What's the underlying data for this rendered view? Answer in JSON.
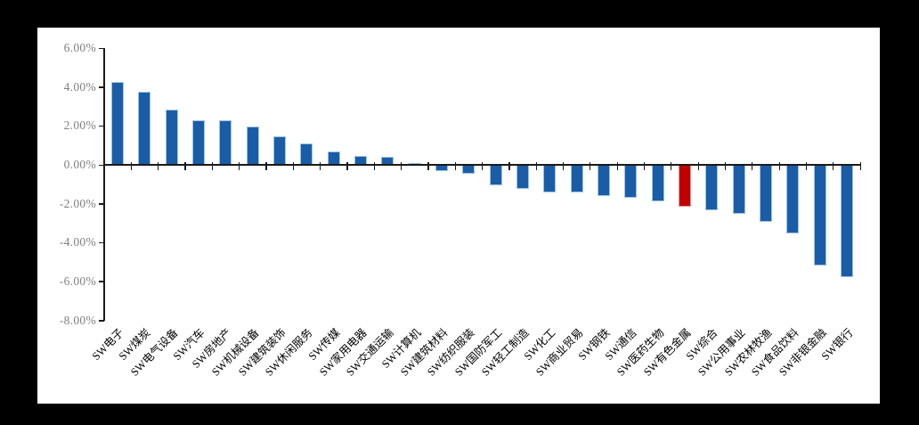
{
  "window": {
    "background_color": "#000000",
    "panel_color": "#ffffff"
  },
  "chart_data": {
    "type": "bar",
    "title": "",
    "legend": "none",
    "grid": "off",
    "categories": [
      "SW电子",
      "SW煤炭",
      "SW电气设备",
      "SW汽车",
      "SW房地产",
      "SW机械设备",
      "SW建筑装饰",
      "SW休闲服务",
      "SW传媒",
      "SW家用电器",
      "SW交通运输",
      "SW计算机",
      "SW建筑材料",
      "SW纺织服装",
      "SW国防军工",
      "SW轻工制造",
      "SW化工",
      "SW商业贸易",
      "SW钢铁",
      "SW通信",
      "SW医药生物",
      "SW有色金属",
      "SW综合",
      "SW公用事业",
      "SW农林牧渔",
      "SW食品饮料",
      "SW非银金融",
      "SW银行"
    ],
    "values": [
      4.25,
      3.77,
      2.82,
      2.29,
      2.27,
      1.96,
      1.45,
      1.09,
      0.7,
      0.47,
      0.41,
      0.1,
      -0.33,
      -0.48,
      -1.07,
      -1.22,
      -1.4,
      -1.41,
      -1.6,
      -1.68,
      -1.86,
      -2.17,
      -2.34,
      -2.52,
      -2.93,
      -3.53,
      -5.16,
      -5.77
    ],
    "unit": "%",
    "highlight_index": 21,
    "highlight_label": "SW有色金属",
    "y_axis": {
      "tick_labels": [
        "6.00%",
        "4.00%",
        "2.00%",
        "0.00%",
        "-2.00%",
        "-4.00%",
        "-6.00%",
        "-8.00%"
      ],
      "tick_values": [
        6,
        4,
        2,
        0,
        -2,
        -4,
        -6,
        -8
      ],
      "max": 6,
      "min": -8,
      "step": 2
    },
    "colors": {
      "bar": "#1A5DA6",
      "bar_edge": "#9DC3E6",
      "highlight": "#C00000",
      "highlight_edge": "#E29B9B",
      "axis": "#1a1a1a",
      "y_label": "#7f7f7f",
      "x_label": "#000000"
    }
  }
}
